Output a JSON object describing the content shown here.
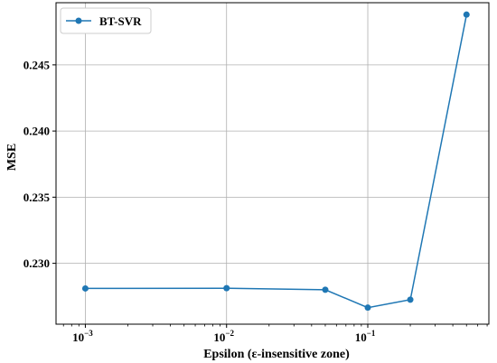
{
  "chart_data": {
    "type": "line",
    "xscale": "log",
    "x": [
      0.001,
      0.01,
      0.05,
      0.1,
      0.2,
      0.5
    ],
    "series": [
      {
        "name": "BT-SVR",
        "values": [
          0.2281,
          0.22812,
          0.228,
          0.22665,
          0.22725,
          0.2488
        ]
      }
    ],
    "xlabel": "Epsilon (ε-insensitive zone)",
    "ylabel": "MSE",
    "xlim": [
      0.00062,
      0.72
    ],
    "ylim": [
      0.2254,
      0.2497
    ],
    "yticks": [
      {
        "value": 0.23,
        "label": "0.230"
      },
      {
        "value": 0.235,
        "label": "0.235"
      },
      {
        "value": 0.24,
        "label": "0.240"
      },
      {
        "value": 0.245,
        "label": "0.245"
      }
    ],
    "xticks": [
      {
        "value": 0.001,
        "base": "10",
        "exp": "−3"
      },
      {
        "value": 0.01,
        "base": "10",
        "exp": "−2"
      },
      {
        "value": 0.1,
        "base": "10",
        "exp": "−1"
      }
    ],
    "grid": true,
    "legend_position": "top-left",
    "color": "#1f77b4"
  }
}
